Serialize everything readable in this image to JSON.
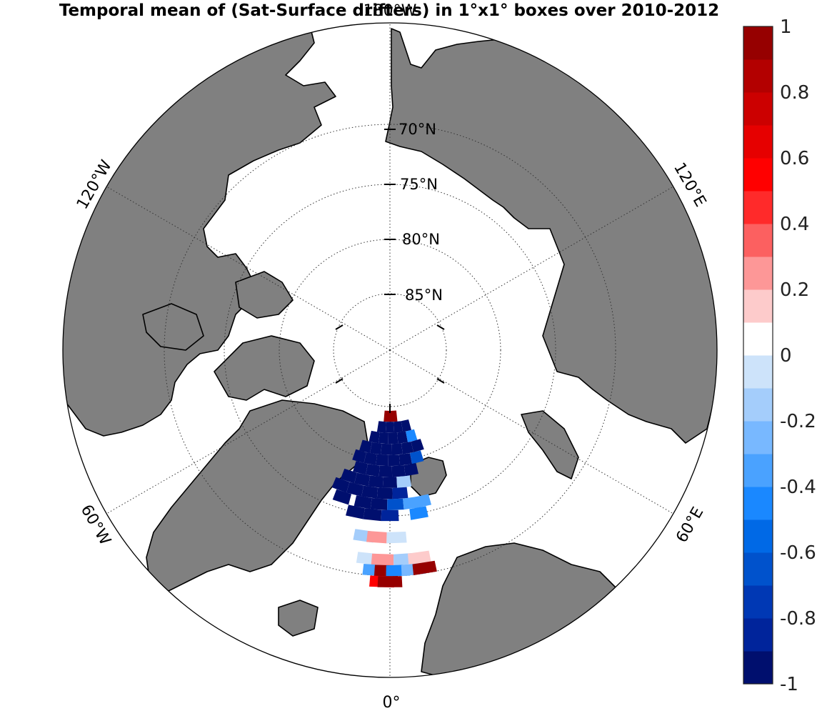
{
  "chart_data": {
    "type": "heatmap",
    "title": "Temporal mean of (Sat-Surface drifters) in 1°x1° boxes over 2010-2012",
    "projection": "north polar stereographic",
    "colorbar": {
      "min": -1,
      "max": 1,
      "tick_labels": [
        "1",
        "0.8",
        "0.6",
        "0.4",
        "0.2",
        "0",
        "-0.2",
        "-0.4",
        "-0.6",
        "-0.8",
        "-1"
      ],
      "levels": [
        -1,
        -0.9,
        -0.8,
        -0.7,
        -0.6,
        -0.5,
        -0.4,
        -0.3,
        -0.2,
        -0.1,
        0,
        0.1,
        0.2,
        0.3,
        0.4,
        0.5,
        0.6,
        0.7,
        0.8,
        0.9,
        1
      ],
      "colors": [
        "#000f6e",
        "#00249b",
        "#0038b4",
        "#0052cc",
        "#0069e6",
        "#1a88ff",
        "#4aa2ff",
        "#78b8ff",
        "#a4cdfb",
        "#cde3fa",
        "#ffffff",
        "#fdcbcb",
        "#fd9797",
        "#fc6060",
        "#ff2a2a",
        "#ff0000",
        "#e60000",
        "#cc0000",
        "#b30000",
        "#960000"
      ]
    },
    "grid": {
      "latitude_labels": [
        "70°N",
        "75°N",
        "80°N",
        "85°N"
      ],
      "longitude_labels": [
        "180°W",
        "120°E",
        "60°E",
        "0°",
        "60°W",
        "120°W"
      ],
      "latitudes": [
        70,
        75,
        80,
        85
      ],
      "longitudes": [
        180,
        120,
        60,
        0,
        -60,
        -120
      ]
    },
    "cells": [
      {
        "lon": -2,
        "lat": 84,
        "value": 0.9
      },
      {
        "lon": 3,
        "lat": 84,
        "value": 0.9
      },
      {
        "lon": -6,
        "lat": 83,
        "value": -1
      },
      {
        "lon": 0,
        "lat": 83,
        "value": -1
      },
      {
        "lon": 6,
        "lat": 83,
        "value": -1
      },
      {
        "lon": 12,
        "lat": 83,
        "value": -1
      },
      {
        "lon": -10,
        "lat": 82,
        "value": -1
      },
      {
        "lon": -4,
        "lat": 82,
        "value": -1
      },
      {
        "lon": 2,
        "lat": 82,
        "value": -1
      },
      {
        "lon": 8,
        "lat": 82,
        "value": -1
      },
      {
        "lon": 14,
        "lat": 82,
        "value": -0.5
      },
      {
        "lon": -14,
        "lat": 81,
        "value": -1
      },
      {
        "lon": -8,
        "lat": 81,
        "value": -1
      },
      {
        "lon": -2,
        "lat": 81,
        "value": -1
      },
      {
        "lon": 4,
        "lat": 81,
        "value": -1
      },
      {
        "lon": 10,
        "lat": 81,
        "value": -1
      },
      {
        "lon": 16,
        "lat": 81,
        "value": -1
      },
      {
        "lon": -16,
        "lat": 80,
        "value": -1
      },
      {
        "lon": -10,
        "lat": 80,
        "value": -1
      },
      {
        "lon": -4,
        "lat": 80,
        "value": -1
      },
      {
        "lon": 2,
        "lat": 80,
        "value": -1
      },
      {
        "lon": 8,
        "lat": 80,
        "value": -1
      },
      {
        "lon": 14,
        "lat": 80,
        "value": -0.7
      },
      {
        "lon": -14,
        "lat": 79,
        "value": -1
      },
      {
        "lon": -8,
        "lat": 79,
        "value": -1
      },
      {
        "lon": -2,
        "lat": 79,
        "value": -1
      },
      {
        "lon": 4,
        "lat": 79,
        "value": -1
      },
      {
        "lon": 10,
        "lat": 79,
        "value": -1
      },
      {
        "lon": -18,
        "lat": 78,
        "value": -1
      },
      {
        "lon": -12,
        "lat": 78,
        "value": -1
      },
      {
        "lon": -6,
        "lat": 78,
        "value": -1
      },
      {
        "lon": 0,
        "lat": 78,
        "value": -1
      },
      {
        "lon": 6,
        "lat": 78,
        "value": -0.2
      },
      {
        "lon": -20,
        "lat": 77,
        "value": -1
      },
      {
        "lon": -14,
        "lat": 77,
        "value": -1
      },
      {
        "lon": -8,
        "lat": 77,
        "value": -1
      },
      {
        "lon": -2,
        "lat": 77,
        "value": -1
      },
      {
        "lon": 4,
        "lat": 77,
        "value": -0.8
      },
      {
        "lon": -18,
        "lat": 76,
        "value": -1
      },
      {
        "lon": -10,
        "lat": 76,
        "value": -1
      },
      {
        "lon": -4,
        "lat": 76,
        "value": -1
      },
      {
        "lon": 2,
        "lat": 76,
        "value": -0.7
      },
      {
        "lon": 8,
        "lat": 76,
        "value": -0.4
      },
      {
        "lon": 12,
        "lat": 76,
        "value": -0.4
      },
      {
        "lon": -12,
        "lat": 75,
        "value": -1
      },
      {
        "lon": -6,
        "lat": 75,
        "value": -0.9
      },
      {
        "lon": 0,
        "lat": 75,
        "value": -0.8
      },
      {
        "lon": 10,
        "lat": 75,
        "value": -0.5
      },
      {
        "lon": -8,
        "lat": 73,
        "value": -0.2
      },
      {
        "lon": -4,
        "lat": 73,
        "value": 0.2
      },
      {
        "lon": 2,
        "lat": 73,
        "value": -0.1
      },
      {
        "lon": -6,
        "lat": 71,
        "value": -0.1
      },
      {
        "lon": -2,
        "lat": 71,
        "value": 0.2
      },
      {
        "lon": 4,
        "lat": 71,
        "value": -0.2
      },
      {
        "lon": 8,
        "lat": 71,
        "value": 0.1
      },
      {
        "lon": -4,
        "lat": 70,
        "value": -0.4
      },
      {
        "lon": -1,
        "lat": 70,
        "value": 0.9
      },
      {
        "lon": 2,
        "lat": 70,
        "value": -0.5
      },
      {
        "lon": 6,
        "lat": 70,
        "value": -0.3
      },
      {
        "lon": 9,
        "lat": 70,
        "value": 1
      },
      {
        "lon": -2,
        "lat": 69,
        "value": 0.5
      },
      {
        "lon": 0,
        "lat": 69,
        "value": 0.9
      }
    ]
  }
}
